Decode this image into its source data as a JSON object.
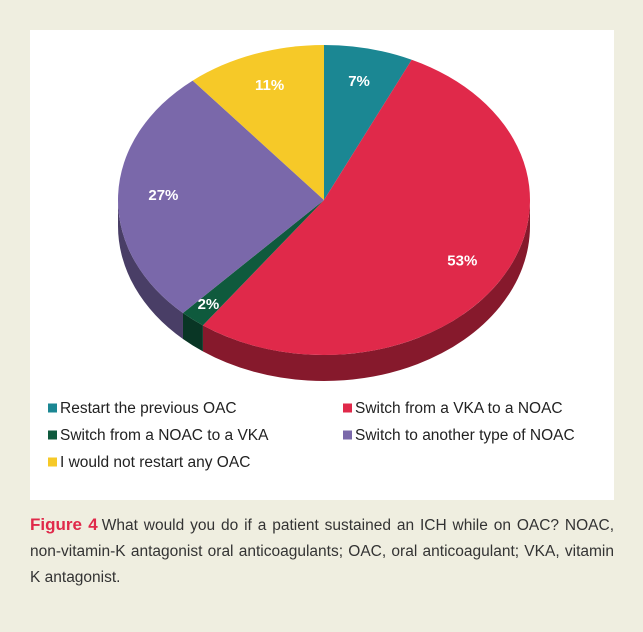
{
  "chart_data": {
    "type": "pie",
    "categories": [
      "Restart the previous OAC",
      "Switch from a VKA to a NOAC",
      "Switch from a NOAC to a VKA",
      "Switch to another type of NOAC",
      "I would not restart any OAC"
    ],
    "values": [
      7,
      53,
      2,
      27,
      11
    ],
    "value_labels": [
      "7%",
      "53%",
      "2%",
      "27%",
      "11%"
    ],
    "colors": [
      "#1b8793",
      "#e0294a",
      "#0f5a3d",
      "#7a68aa",
      "#f6c928"
    ]
  },
  "caption": {
    "label": "Figure 4",
    "text": "What would you do if a patient sustained an ICH while on OAC? NOAC, non-vitamin-K antagonist oral anticoagulants; OAC, oral anticoagulant; VKA, vitamin K antagonist."
  }
}
